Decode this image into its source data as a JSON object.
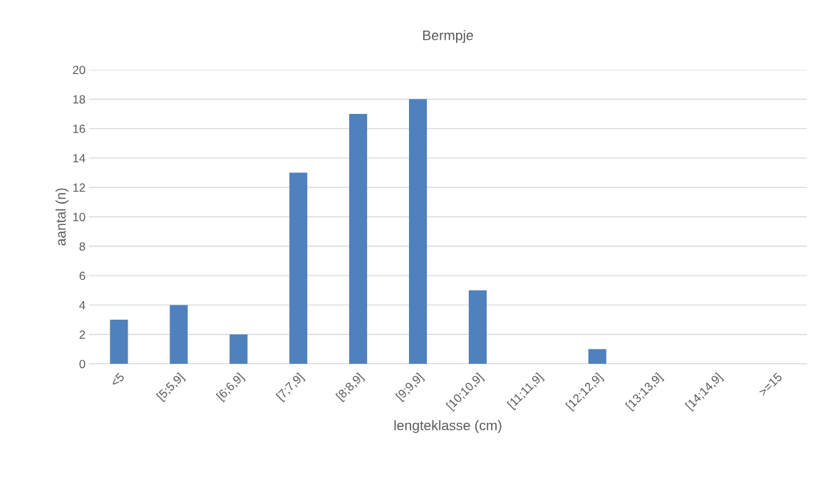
{
  "chart_data": {
    "type": "bar",
    "title": "Bermpje",
    "xlabel": "lengteklasse (cm)",
    "ylabel": "aantal (n)",
    "categories": [
      "<5",
      "[5;5,9]",
      "[6;6,9]",
      "[7;7,9]",
      "[8;8,9]",
      "[9;9,9]",
      "[10;10,9]",
      "[11;11,9]",
      "[12;12,9]",
      "[13;13,9]",
      "[14;14,9]",
      ">=15"
    ],
    "values": [
      3,
      4,
      2,
      13,
      17,
      18,
      5,
      0,
      1,
      0,
      0,
      0
    ],
    "color": "#4f81bd",
    "ylim": [
      0,
      20
    ],
    "yticks": [
      0,
      2,
      4,
      6,
      8,
      10,
      12,
      14,
      16,
      18,
      20
    ],
    "grid": "y",
    "legend": false
  }
}
